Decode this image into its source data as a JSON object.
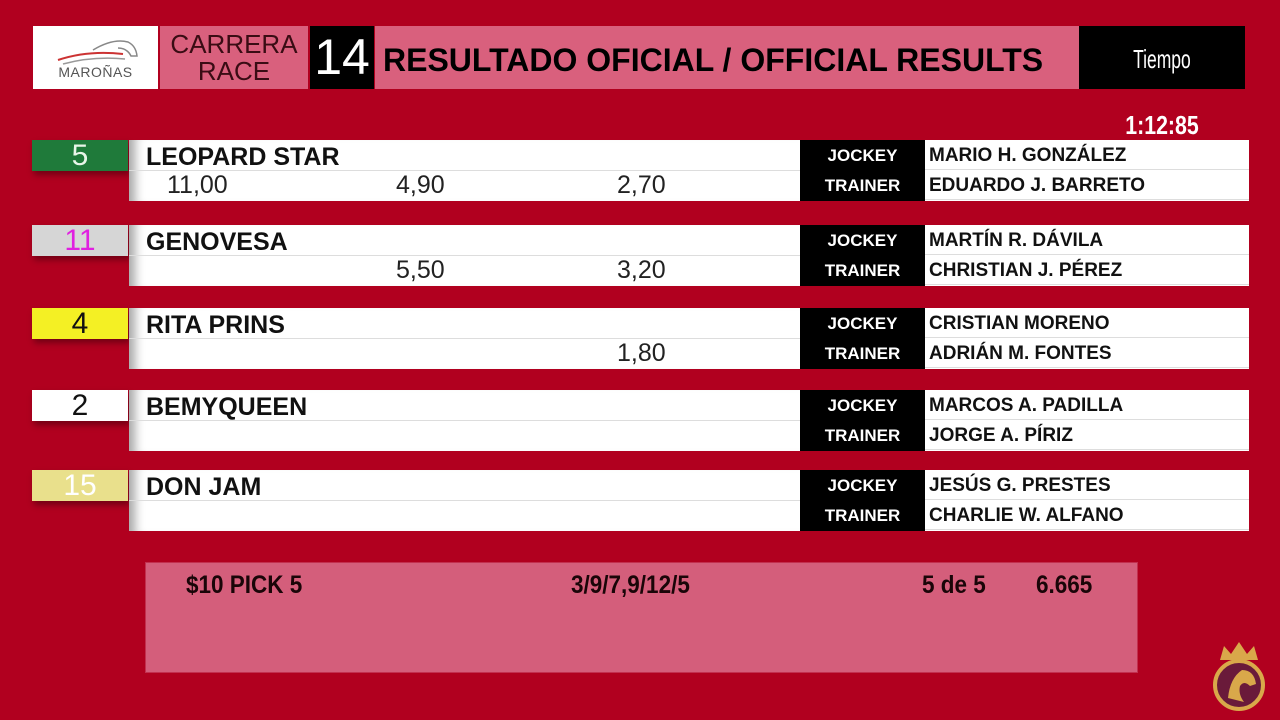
{
  "header": {
    "logo_text": "MAROÑAS",
    "race_label_es": "CARRERA",
    "race_label_en": "RACE",
    "race_number": "14",
    "title": "RESULTADO OFICIAL / OFFICIAL RESULTS",
    "time_label": "Tiempo",
    "time_value": "1:12:85"
  },
  "labels": {
    "jockey": "JOCKEY",
    "trainer": "TRAINER"
  },
  "results": [
    {
      "number": "5",
      "cloth_color": "#1f7a3a",
      "number_color": "#e8f5e8",
      "horse": "LEOPARD STAR",
      "win": "11,00",
      "place": "4,90",
      "show": "2,70",
      "jockey": "MARIO H. GONZÁLEZ",
      "trainer": "EDUARDO J. BARRETO"
    },
    {
      "number": "11",
      "cloth_color": "#d6d6d6",
      "number_color": "#e020e0",
      "horse": "GENOVESA",
      "win": "",
      "place": "5,50",
      "show": "3,20",
      "jockey": "MARTÍN R. DÁVILA",
      "trainer": "CHRISTIAN J. PÉREZ"
    },
    {
      "number": "4",
      "cloth_color": "#f4f024",
      "number_color": "#111111",
      "horse": "RITA PRINS",
      "win": "",
      "place": "",
      "show": "1,80",
      "jockey": "CRISTIAN MORENO",
      "trainer": "ADRIÁN M. FONTES"
    },
    {
      "number": "2",
      "cloth_color": "#ffffff",
      "number_color": "#111111",
      "horse": "BEMYQUEEN",
      "win": "",
      "place": "",
      "show": "",
      "jockey": "MARCOS A. PADILLA",
      "trainer": "JORGE A. PÍRIZ"
    },
    {
      "number": "15",
      "cloth_color": "#e9e08c",
      "number_color": "#ffffff",
      "horse": "DON JAM",
      "win": "",
      "place": "",
      "show": "",
      "jockey": "JESÚS G. PRESTES",
      "trainer": "CHARLIE W. ALFANO"
    }
  ],
  "pick": {
    "bet": "$10 PICK 5",
    "combination": "3/9/7,9/12/5",
    "hits": "5 de 5",
    "payout": "6.665"
  },
  "colors": {
    "background": "#b1001f",
    "panel_pink": "#d9607d"
  },
  "icons": {
    "corner": "crown-horse-crest-icon",
    "logo": "horse-head-logo-icon"
  }
}
